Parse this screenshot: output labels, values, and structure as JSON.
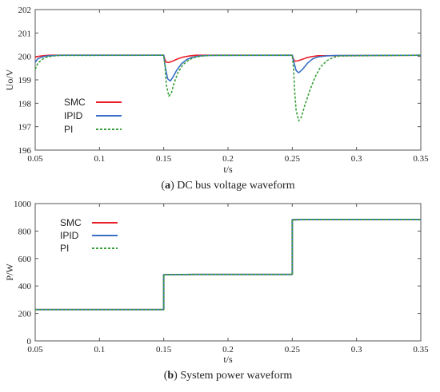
{
  "chart_data": [
    {
      "type": "line",
      "caption_letter": "a",
      "caption_text": "DC bus voltage waveform",
      "xlabel": "t/s",
      "ylabel": "Uo/V",
      "xlim": [
        0.05,
        0.35
      ],
      "ylim": [
        196,
        202
      ],
      "xticks": [
        "0.05",
        "0.1",
        "0.15",
        "0.2",
        "0.25",
        "0.3",
        "0.35"
      ],
      "yticks": [
        "196",
        "197",
        "198",
        "199",
        "200",
        "201",
        "202"
      ],
      "grid": false,
      "legend_position": "left",
      "series": [
        {
          "name": "SMC",
          "color": "#e8202a",
          "style": "solid",
          "x": [
            0.05,
            0.052,
            0.055,
            0.058,
            0.062,
            0.07,
            0.15,
            0.151,
            0.152,
            0.154,
            0.157,
            0.161,
            0.165,
            0.17,
            0.175,
            0.25,
            0.251,
            0.252,
            0.254,
            0.257,
            0.261,
            0.265,
            0.27,
            0.35
          ],
          "y": [
            199.97,
            200.0,
            200.02,
            200.04,
            200.05,
            200.05,
            200.05,
            199.85,
            199.75,
            199.74,
            199.8,
            199.9,
            199.97,
            200.02,
            200.05,
            200.05,
            199.88,
            199.8,
            199.81,
            199.86,
            199.94,
            199.99,
            200.03,
            200.05
          ]
        },
        {
          "name": "IPID",
          "color": "#3a6fc4",
          "style": "solid",
          "x": [
            0.05,
            0.052,
            0.055,
            0.058,
            0.062,
            0.066,
            0.07,
            0.15,
            0.151,
            0.153,
            0.155,
            0.157,
            0.16,
            0.164,
            0.168,
            0.172,
            0.178,
            0.185,
            0.25,
            0.251,
            0.253,
            0.255,
            0.258,
            0.262,
            0.266,
            0.27,
            0.276,
            0.283,
            0.35
          ],
          "y": [
            199.75,
            199.9,
            199.97,
            200.01,
            200.03,
            200.04,
            200.05,
            200.05,
            199.6,
            199.05,
            198.95,
            199.1,
            199.4,
            199.7,
            199.87,
            199.96,
            200.02,
            200.04,
            200.05,
            199.8,
            199.4,
            199.3,
            199.45,
            199.72,
            199.9,
            199.98,
            200.02,
            200.04,
            200.05
          ]
        },
        {
          "name": "PI",
          "color": "#3aa13a",
          "style": "dashed",
          "x": [
            0.05,
            0.052,
            0.055,
            0.058,
            0.062,
            0.066,
            0.07,
            0.15,
            0.151,
            0.152,
            0.154,
            0.156,
            0.158,
            0.161,
            0.165,
            0.17,
            0.175,
            0.18,
            0.185,
            0.19,
            0.25,
            0.251,
            0.252,
            0.253,
            0.255,
            0.257,
            0.26,
            0.264,
            0.268,
            0.272,
            0.277,
            0.282,
            0.287,
            0.35
          ],
          "y": [
            199.45,
            199.7,
            199.86,
            199.95,
            200.0,
            200.03,
            200.04,
            200.05,
            199.6,
            198.8,
            198.3,
            198.45,
            198.85,
            199.3,
            199.65,
            199.87,
            199.97,
            200.02,
            200.04,
            200.05,
            200.05,
            199.5,
            198.4,
            197.7,
            197.25,
            197.4,
            197.95,
            198.6,
            199.15,
            199.55,
            199.82,
            199.96,
            200.02,
            200.05
          ]
        }
      ]
    },
    {
      "type": "line",
      "caption_letter": "b",
      "caption_text": "System power waveform",
      "xlabel": "t/s",
      "ylabel": "P/W",
      "xlim": [
        0.05,
        0.35
      ],
      "ylim": [
        0,
        1000
      ],
      "xticks": [
        "0.05",
        "0.1",
        "0.15",
        "0.2",
        "0.25",
        "0.3",
        "0.35"
      ],
      "yticks": [
        "0",
        "200",
        "400",
        "600",
        "800",
        "1000"
      ],
      "grid": false,
      "legend_position": "top-left",
      "series": [
        {
          "name": "SMC",
          "color": "#e8202a",
          "style": "solid",
          "x": [
            0.05,
            0.15,
            0.15,
            0.175,
            0.25,
            0.25,
            0.26,
            0.35
          ],
          "y": [
            228,
            228,
            482,
            484,
            484,
            882,
            884,
            884
          ]
        },
        {
          "name": "IPID",
          "color": "#3a6fc4",
          "style": "solid",
          "x": [
            0.05,
            0.15,
            0.15,
            0.175,
            0.25,
            0.25,
            0.26,
            0.35
          ],
          "y": [
            228,
            228,
            482,
            484,
            484,
            882,
            884,
            884
          ]
        },
        {
          "name": "PI",
          "color": "#3aa13a",
          "style": "dashed",
          "x": [
            0.05,
            0.15,
            0.15,
            0.175,
            0.25,
            0.25,
            0.26,
            0.35
          ],
          "y": [
            228,
            228,
            482,
            484,
            484,
            882,
            884,
            884
          ]
        }
      ]
    }
  ]
}
